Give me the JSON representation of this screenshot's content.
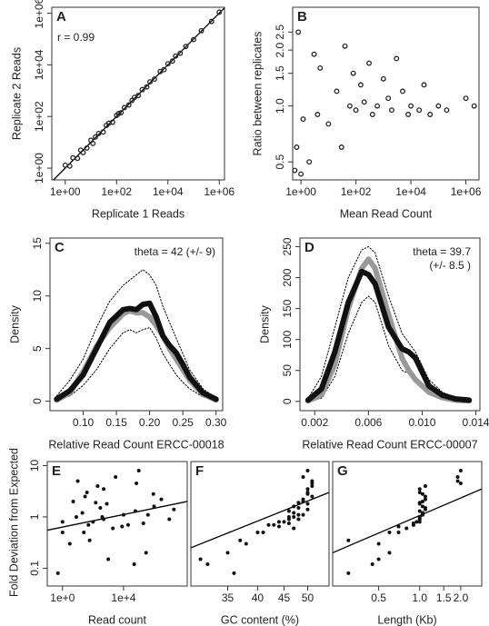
{
  "chart_data": [
    {
      "type": "scatter",
      "label": "A",
      "annotation": [
        "r = 0.99"
      ],
      "xlabel": "Replicate 1 Reads",
      "ylabel": "Replicate 2 Reads",
      "xscale": "log",
      "yscale": "log",
      "xlim": [
        0.3,
        1600000
      ],
      "ylim": [
        0.35,
        1700000
      ],
      "xticks": [
        {
          "value": 1,
          "label": "1e+00"
        },
        {
          "value": 100,
          "label": "1e+02"
        },
        {
          "value": 10000,
          "label": "1e+04"
        },
        {
          "value": 1000000,
          "label": "1e+06"
        }
      ],
      "yticks": [
        {
          "value": 1,
          "label": "1e+00"
        },
        {
          "value": 100,
          "label": "1e+02"
        },
        {
          "value": 10000,
          "label": "1e+04"
        },
        {
          "value": 1000000,
          "label": "1e+06"
        }
      ],
      "color": "#222222",
      "marker": "open",
      "x": [
        1,
        1.5,
        2,
        3,
        4,
        5,
        7,
        10,
        12,
        15,
        20,
        30,
        40,
        50,
        70,
        100,
        120,
        150,
        200,
        300,
        400,
        500,
        700,
        1000,
        1500,
        2000,
        3000,
        5000,
        7000,
        10000,
        15000,
        20000,
        30000,
        50000,
        100000,
        200000,
        500000,
        1000000
      ],
      "values": [
        1.3,
        1.2,
        2.5,
        2.4,
        5,
        4,
        6,
        12,
        9,
        16,
        22,
        25,
        45,
        55,
        60,
        110,
        130,
        140,
        220,
        280,
        420,
        550,
        650,
        1100,
        1400,
        2200,
        2800,
        5500,
        6500,
        11000,
        14000,
        22000,
        28000,
        52000,
        95000,
        210000,
        480000,
        1100000
      ],
      "lines": [
        {
          "x": [
            0.3,
            1600000
          ],
          "values": [
            0.3,
            1600000
          ],
          "color": "#000000"
        }
      ]
    },
    {
      "type": "scatter",
      "label": "B",
      "xlabel": "Mean Read Count",
      "ylabel": "Ratio between replicates",
      "xscale": "log",
      "yscale": "log",
      "xlim": [
        0.5,
        3000000
      ],
      "ylim": [
        0.4,
        3.4
      ],
      "xticks": [
        {
          "value": 1,
          "label": "1e+00"
        },
        {
          "value": 100,
          "label": "1e+02"
        },
        {
          "value": 10000,
          "label": "1e+04"
        },
        {
          "value": 1000000,
          "label": "1e+06"
        }
      ],
      "yticks": [
        0.5,
        {
          "value": 1,
          "label": "1.0"
        },
        1.5,
        {
          "value": 2,
          "label": "2.0"
        },
        2.5
      ],
      "color": "#222222",
      "marker": "open",
      "x": [
        0.6,
        0.7,
        0.8,
        1,
        1.2,
        2,
        3,
        4,
        5,
        10,
        20,
        30,
        40,
        60,
        80,
        100,
        150,
        200,
        300,
        400,
        600,
        1000,
        1500,
        2000,
        3000,
        5000,
        8000,
        10000,
        20000,
        30000,
        50000,
        100000,
        200000,
        1000000,
        2000000
      ],
      "values": [
        0.45,
        0.6,
        2.5,
        0.43,
        0.85,
        0.5,
        1.9,
        0.9,
        1.6,
        0.8,
        1.2,
        0.6,
        2.1,
        1.0,
        1.5,
        0.95,
        1.3,
        1.05,
        1.7,
        0.9,
        1.0,
        1.4,
        1.1,
        0.95,
        1.8,
        1.2,
        0.9,
        1.0,
        0.95,
        1.3,
        0.9,
        1.0,
        0.95,
        1.1,
        1.0
      ]
    },
    {
      "type": "line",
      "label": "C",
      "annotation": [
        "theta = 42 (+/- 9)"
      ],
      "xlabel": "Relative Read Count ERCC-00018",
      "ylabel": "Density",
      "xlim": [
        0.05,
        0.31
      ],
      "ylim": [
        -0.9,
        15.5
      ],
      "xticks": [
        {
          "value": 0.1,
          "label": "0.10"
        },
        0.15,
        {
          "value": 0.2,
          "label": "0.20"
        },
        0.25,
        {
          "value": 0.3,
          "label": "0.30"
        }
      ],
      "yticks": [
        0,
        5,
        10,
        15
      ],
      "x": [
        0.06,
        0.08,
        0.1,
        0.12,
        0.14,
        0.16,
        0.17,
        0.18,
        0.19,
        0.2,
        0.21,
        0.22,
        0.23,
        0.24,
        0.25,
        0.26,
        0.28,
        0.3
      ],
      "series": [
        {
          "color": "#000000",
          "linewidth": 1,
          "dashed": true,
          "values": [
            0.5,
            2,
            4,
            7,
            9.5,
            11,
            11.5,
            12,
            12.5,
            12,
            11,
            9,
            7.5,
            6,
            4.5,
            3,
            1.2,
            0.3
          ]
        },
        {
          "color": "#000000",
          "linewidth": 1,
          "dashed": true,
          "values": [
            0.1,
            0.5,
            1.5,
            3,
            5,
            6.5,
            6.8,
            6.5,
            6.8,
            7,
            6,
            4.5,
            3.5,
            2.5,
            1.8,
            1.2,
            0.4,
            0.1
          ]
        },
        {
          "color": "#999999",
          "linewidth": 6,
          "dashed": false,
          "values": [
            0.1,
            0.8,
            2.8,
            5.2,
            7,
            8.3,
            8.6,
            8.4,
            8.4,
            8,
            7.2,
            6.2,
            5,
            4,
            3,
            2,
            0.7,
            0.1
          ]
        },
        {
          "color": "#111111",
          "linewidth": 6,
          "dashed": false,
          "values": [
            0.2,
            1,
            2.5,
            5,
            7.5,
            8.7,
            8.8,
            8.7,
            9.2,
            9.3,
            8,
            6.2,
            5.3,
            4.6,
            3.5,
            2.3,
            0.8,
            0.2
          ]
        }
      ]
    },
    {
      "type": "line",
      "label": "D",
      "annotation": [
        "theta = 39.7",
        "(+/- 8.5 )"
      ],
      "xlabel": "Relative Read Count ERCC-00007",
      "ylabel": "Density",
      "xlim": [
        0.0009,
        0.0143
      ],
      "ylim": [
        -15,
        264
      ],
      "xticks": [
        0.002,
        0.006,
        {
          "value": 0.01,
          "label": "0.010"
        },
        0.014
      ],
      "yticks": [
        0,
        50,
        100,
        150,
        200,
        250
      ],
      "x": [
        0.0015,
        0.0025,
        0.0035,
        0.0045,
        0.0055,
        0.006,
        0.0065,
        0.0075,
        0.0085,
        0.009,
        0.0095,
        0.0105,
        0.0115,
        0.0125,
        0.0135
      ],
      "series": [
        {
          "color": "#000000",
          "linewidth": 1,
          "dashed": true,
          "values": [
            5,
            40,
            120,
            200,
            245,
            250,
            240,
            170,
            110,
            95,
            80,
            35,
            15,
            6,
            3
          ]
        },
        {
          "color": "#000000",
          "linewidth": 1,
          "dashed": true,
          "values": [
            0,
            5,
            40,
            110,
            160,
            170,
            160,
            90,
            50,
            45,
            40,
            12,
            4,
            1,
            0
          ]
        },
        {
          "color": "#999999",
          "linewidth": 6,
          "dashed": false,
          "values": [
            1,
            10,
            60,
            150,
            215,
            230,
            215,
            140,
            70,
            50,
            35,
            15,
            6,
            2,
            1
          ]
        },
        {
          "color": "#111111",
          "linewidth": 6,
          "dashed": false,
          "values": [
            2,
            20,
            80,
            160,
            210,
            205,
            190,
            120,
            85,
            80,
            70,
            25,
            10,
            4,
            2
          ]
        }
      ]
    },
    {
      "type": "scatter",
      "label": "E",
      "xlabel": "Read count",
      "ylabel": "Fold Deviation from Expected",
      "xscale": "log",
      "yscale": "log",
      "xlim": [
        0.1,
        150000000
      ],
      "ylim": [
        0.045,
        12
      ],
      "xticks": [
        {
          "value": 1,
          "label": "1e+0"
        },
        {
          "value": 10000,
          "label": "1e+4"
        }
      ],
      "yticks": [
        0.1,
        1,
        10
      ],
      "color": "#111111",
      "marker": "filled",
      "x": [
        2,
        0.5,
        3,
        1,
        50,
        1,
        8,
        20,
        300,
        5,
        40,
        200,
        3000,
        100000.0,
        2000,
        500,
        10000.0,
        800,
        30,
        1000.0,
        300000.0,
        60,
        20000.0,
        60000.0,
        1000000.0,
        3000000.0,
        500,
        10,
        50000.0,
        10000000.0,
        100,
        400,
        400000.0,
        20000000.0,
        8000.0,
        200000.0,
        900000.0,
        70000.0,
        150,
        25
      ],
      "values": [
        0.04,
        0.08,
        0.3,
        0.5,
        0.7,
        0.8,
        1,
        1.2,
        1.5,
        2,
        3,
        4,
        6,
        8,
        0.6,
        0.9,
        1.1,
        1.8,
        2.5,
        0.15,
        0.2,
        0.35,
        0.7,
        1.3,
        1.6,
        2.2,
        3.5,
        5,
        0.12,
        0.9,
        0.8,
        1.0,
        1.1,
        1.4,
        0.65,
        0.75,
        2.8,
        4.5,
        1.9,
        0.5
      ],
      "lines": [
        {
          "x": [
            0.1,
            150000000
          ],
          "values": [
            0.55,
            2
          ],
          "color": "#000000"
        }
      ]
    },
    {
      "type": "scatter",
      "label": "F",
      "xlabel": "GC content (%)",
      "xscale": "log",
      "yscale": "log",
      "xlim": [
        29.7,
        55
      ],
      "ylim": [
        0.045,
        12
      ],
      "xticks": [
        35,
        40,
        45,
        50
      ],
      "color": "#111111",
      "marker": "filled",
      "x": [
        33,
        36,
        38,
        40,
        42,
        44,
        46,
        47,
        48,
        49,
        50,
        51,
        49,
        50,
        47,
        46,
        48,
        50,
        51,
        31,
        35,
        37,
        43,
        46,
        47,
        49,
        50,
        51,
        32,
        48,
        45,
        47,
        49,
        50,
        44,
        46,
        50,
        51,
        48,
        41
      ],
      "values": [
        0.04,
        0.08,
        0.3,
        0.5,
        0.7,
        0.8,
        1,
        1.2,
        1.5,
        2,
        3,
        4,
        6,
        8,
        0.6,
        0.9,
        1.1,
        1.8,
        2.5,
        0.15,
        0.2,
        0.35,
        0.7,
        1.3,
        1.6,
        2.2,
        3.5,
        5,
        0.12,
        0.9,
        0.8,
        1.0,
        1.1,
        1.4,
        0.65,
        0.75,
        2.8,
        4.5,
        1.9,
        0.5
      ],
      "lines": [
        {
          "x": [
            29.7,
            55
          ],
          "values": [
            0.25,
            3
          ],
          "color": "#000000"
        }
      ]
    },
    {
      "type": "scatter",
      "label": "G",
      "xlabel": "Length (Kb)",
      "xscale": "log",
      "yscale": "log",
      "xlim": [
        0.23,
        2.85
      ],
      "ylim": [
        0.045,
        12
      ],
      "xticks": [
        0.5,
        {
          "value": 1,
          "label": "1.0"
        },
        1.5,
        {
          "value": 2,
          "label": "2.0"
        }
      ],
      "color": "#111111",
      "marker": "filled",
      "x": [
        0.4,
        0.3,
        0.5,
        0.7,
        0.9,
        1.0,
        1.0,
        1.05,
        1.1,
        1.05,
        1.0,
        1.1,
        1.9,
        2.0,
        0.8,
        1.0,
        1.05,
        1.0,
        1.1,
        0.5,
        0.6,
        0.3,
        0.9,
        1.0,
        1.05,
        1.1,
        1.0,
        1.9,
        0.45,
        1.0,
        0.95,
        1.0,
        1.05,
        1.1,
        0.7,
        0.9,
        1.05,
        2.0,
        1.0,
        0.6
      ],
      "values": [
        0.04,
        0.08,
        0.3,
        0.5,
        0.7,
        0.8,
        1,
        1.2,
        1.5,
        2,
        3,
        4,
        6,
        8,
        0.6,
        0.9,
        1.1,
        1.8,
        2.5,
        0.15,
        0.2,
        0.35,
        0.7,
        1.3,
        1.6,
        2.2,
        3.5,
        5,
        0.12,
        0.9,
        0.8,
        1.0,
        1.1,
        1.4,
        0.65,
        0.75,
        2.8,
        4.5,
        1.9,
        0.5
      ],
      "lines": [
        {
          "x": [
            0.23,
            2.85
          ],
          "values": [
            0.2,
            3.5
          ],
          "color": "#000000"
        }
      ]
    }
  ]
}
